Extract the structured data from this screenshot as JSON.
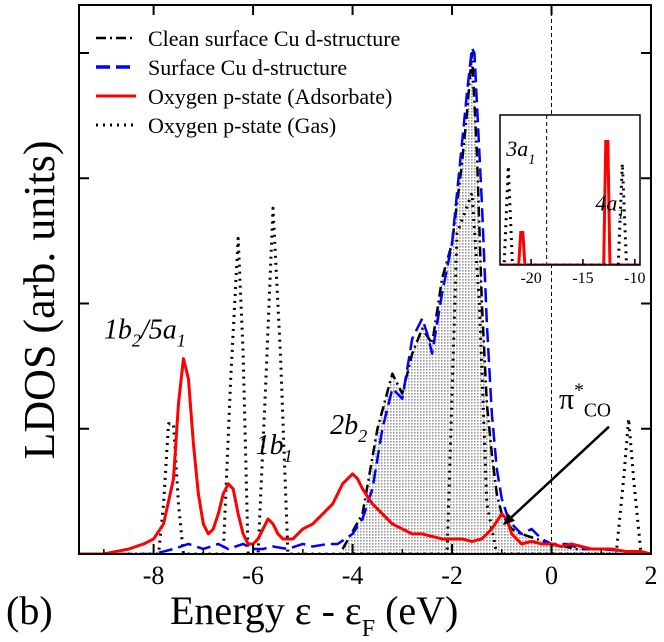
{
  "panel_label": "(b)",
  "chart_data": [
    {
      "type": "line",
      "xlabel": {
        "text": "Energy ε - ε",
        "sub": "F",
        "unit": "(eV)"
      },
      "ylabel": "LDOS (arb. units)",
      "xlim": [
        -9.5,
        2
      ],
      "ylim": [
        0,
        1
      ],
      "x_ticks": [
        -8,
        -6,
        -4,
        -2,
        0,
        2
      ],
      "x_tick_labels": [
        "-8",
        "-6",
        "-4",
        "-2",
        "0",
        "2"
      ],
      "fermi_level": 0,
      "legend_position": "top-left",
      "series": [
        {
          "name": "Clean surface Cu d-structure",
          "color": "#000000",
          "style": "dashdot",
          "fill": "#dcdcdc",
          "x": [
            -4.2,
            -3.8,
            -3.5,
            -3.2,
            -3.0,
            -2.8,
            -2.6,
            -2.4,
            -2.2,
            -2.0,
            -1.9,
            -1.8,
            -1.7,
            -1.6,
            -1.5,
            -1.4,
            -1.3,
            -1.2,
            -1.1,
            -1.0,
            -0.8,
            -0.6,
            -0.3,
            0.0,
            0.5,
            1.0,
            1.5,
            2.0
          ],
          "y": [
            0.01,
            0.08,
            0.25,
            0.36,
            0.32,
            0.4,
            0.45,
            0.42,
            0.55,
            0.62,
            0.7,
            0.78,
            0.88,
            1.0,
            0.8,
            0.5,
            0.3,
            0.2,
            0.12,
            0.08,
            0.05,
            0.04,
            0.03,
            0.02,
            0.01,
            0.01,
            0.005,
            0.0
          ]
        },
        {
          "name": "Surface Cu d-structure",
          "color": "#0000ff",
          "style": "dashed",
          "x": [
            -9.5,
            -8.0,
            -7.6,
            -7.3,
            -7.0,
            -6.7,
            -6.5,
            -6.2,
            -6.0,
            -5.8,
            -5.6,
            -5.3,
            -5.0,
            -4.8,
            -4.5,
            -4.3,
            -4.0,
            -3.8,
            -3.6,
            -3.4,
            -3.2,
            -3.0,
            -2.8,
            -2.6,
            -2.5,
            -2.4,
            -2.2,
            -2.0,
            -1.9,
            -1.8,
            -1.7,
            -1.6,
            -1.55,
            -1.5,
            -1.4,
            -1.3,
            -1.2,
            -1.1,
            -1.0,
            -0.9,
            -0.8,
            -0.6,
            -0.4,
            -0.2,
            0.0,
            0.3,
            0.6,
            1.0,
            1.5,
            2.0
          ],
          "y": [
            0.0,
            0.0,
            0.01,
            0.02,
            0.01,
            0.02,
            0.01,
            0.02,
            0.01,
            0.01,
            0.015,
            0.01,
            0.02,
            0.015,
            0.02,
            0.02,
            0.04,
            0.07,
            0.13,
            0.25,
            0.33,
            0.31,
            0.43,
            0.47,
            0.44,
            0.4,
            0.52,
            0.62,
            0.72,
            0.82,
            0.92,
            1.01,
            1.0,
            0.9,
            0.7,
            0.46,
            0.28,
            0.17,
            0.11,
            0.08,
            0.06,
            0.04,
            0.05,
            0.03,
            0.02,
            0.02,
            0.01,
            0.01,
            0.005,
            0.0
          ]
        },
        {
          "name": "Oxygen p-state (Adsorbate)",
          "color": "#ff0000",
          "style": "solid",
          "x": [
            -9.5,
            -9.0,
            -8.5,
            -8.2,
            -8.0,
            -7.8,
            -7.6,
            -7.5,
            -7.4,
            -7.3,
            -7.2,
            -7.1,
            -7.0,
            -6.9,
            -6.8,
            -6.7,
            -6.6,
            -6.5,
            -6.4,
            -6.3,
            -6.2,
            -6.1,
            -6.0,
            -5.9,
            -5.8,
            -5.7,
            -5.6,
            -5.5,
            -5.4,
            -5.2,
            -5.0,
            -4.8,
            -4.6,
            -4.4,
            -4.2,
            -4.0,
            -3.9,
            -3.8,
            -3.6,
            -3.4,
            -3.2,
            -3.0,
            -2.8,
            -2.6,
            -2.4,
            -2.2,
            -2.0,
            -1.8,
            -1.6,
            -1.4,
            -1.2,
            -1.0,
            -0.9,
            -0.8,
            -0.6,
            -0.4,
            -0.2,
            0.0,
            0.2,
            0.4,
            0.6,
            0.8,
            1.0,
            1.2,
            1.5,
            1.8,
            2.0
          ],
          "y": [
            0.0,
            0.0,
            0.01,
            0.02,
            0.03,
            0.06,
            0.15,
            0.3,
            0.39,
            0.35,
            0.22,
            0.12,
            0.06,
            0.04,
            0.05,
            0.08,
            0.12,
            0.14,
            0.13,
            0.08,
            0.04,
            0.02,
            0.02,
            0.03,
            0.05,
            0.07,
            0.06,
            0.04,
            0.03,
            0.03,
            0.05,
            0.06,
            0.08,
            0.1,
            0.14,
            0.16,
            0.15,
            0.13,
            0.1,
            0.08,
            0.06,
            0.05,
            0.04,
            0.04,
            0.035,
            0.03,
            0.03,
            0.03,
            0.025,
            0.03,
            0.05,
            0.08,
            0.07,
            0.04,
            0.02,
            0.025,
            0.02,
            0.02,
            0.015,
            0.02,
            0.015,
            0.01,
            0.01,
            0.01,
            0.005,
            0.005,
            0.0
          ]
        },
        {
          "name": "Oxygen p-state (Gas)",
          "color": "#000000",
          "style": "dotted",
          "x": [
            -9.5,
            -7.9,
            -7.8,
            -7.7,
            -7.6,
            -7.5,
            -7.4,
            -6.6,
            -6.45,
            -6.3,
            -6.2,
            -6.1,
            -5.9,
            -5.75,
            -5.6,
            -5.45,
            -5.3,
            -5.1,
            -2.1,
            -1.9,
            -1.6,
            -1.45,
            -1.3,
            -1.1,
            1.3,
            1.45,
            1.55,
            1.65,
            1.8,
            2.0
          ],
          "y": [
            0.0,
            0.0,
            0.1,
            0.26,
            0.26,
            0.1,
            0.0,
            0.0,
            0.35,
            0.63,
            0.4,
            0.0,
            0.0,
            0.33,
            0.69,
            0.4,
            0.0,
            0.0,
            0.0,
            0.64,
            0.72,
            0.5,
            0.1,
            0.0,
            0.0,
            0.15,
            0.27,
            0.15,
            0.0,
            0.0
          ]
        }
      ],
      "annotations": [
        {
          "parts": [
            [
              "1b",
              ""
            ],
            [
              "2",
              "sub"
            ],
            [
              "/5a",
              ""
            ],
            [
              "1",
              "sub"
            ]
          ],
          "x": -9.0,
          "y": 0.43
        },
        {
          "parts": [
            [
              "1b",
              ""
            ],
            [
              "1",
              "sub"
            ]
          ],
          "x": -5.95,
          "y": 0.2
        },
        {
          "parts": [
            [
              "2b",
              ""
            ],
            [
              "2",
              "sub"
            ]
          ],
          "x": -4.45,
          "y": 0.24
        },
        {
          "parts": [
            [
              "π",
              ""
            ],
            [
              "*",
              "sup"
            ],
            [
              "CO",
              "sub"
            ]
          ],
          "x": 0.15,
          "y": 0.29,
          "arrow_to": [
            -0.95,
            0.06
          ]
        }
      ]
    },
    {
      "type": "line",
      "role": "inset",
      "xlim": [
        -23,
        -9.5
      ],
      "ylim": [
        0,
        1
      ],
      "x_ticks": [
        -20,
        -15,
        -10
      ],
      "x_tick_labels": [
        "-20",
        "-15",
        "-10"
      ],
      "vline": -18.5,
      "series": [
        {
          "name": "Oxygen p-state (Adsorbate)",
          "color": "#ff0000",
          "style": "solid",
          "x": [
            -23,
            -21.2,
            -21.0,
            -20.8,
            -20.6,
            -13.5,
            -13.0,
            -12.8,
            -12.6,
            -12.4,
            -9.5
          ],
          "y": [
            0.0,
            0.0,
            0.25,
            0.25,
            0.0,
            0.0,
            0.0,
            0.95,
            0.95,
            0.0,
            0.0
          ]
        },
        {
          "name": "Oxygen p-state (Gas)",
          "color": "#000000",
          "style": "dotted",
          "x": [
            -23,
            -22.6,
            -22.2,
            -21.8,
            -21.4,
            -11.6,
            -11.2,
            -10.8,
            -10.4,
            -9.5
          ],
          "y": [
            0.0,
            0.0,
            0.76,
            0.0,
            0.0,
            0.0,
            0.78,
            0.0,
            0.0,
            0.0
          ]
        }
      ],
      "annotations": [
        {
          "parts": [
            [
              "3a",
              ""
            ],
            [
              "1",
              "sub"
            ]
          ],
          "x": -22.4,
          "y": 0.84
        },
        {
          "parts": [
            [
              "4a",
              ""
            ],
            [
              "1",
              "sub"
            ]
          ],
          "x": -13.8,
          "y": 0.42
        }
      ]
    }
  ]
}
